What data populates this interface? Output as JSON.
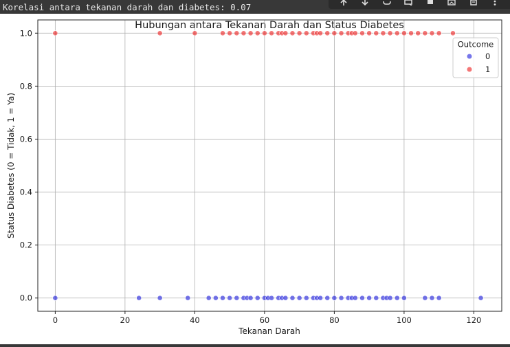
{
  "console_output": "Korelasi antara tekanan darah dan diabetes: 0.07",
  "toolbar": {
    "icons": [
      "arrow-up-icon",
      "arrow-down-icon",
      "link-icon",
      "comment-icon",
      "settings-icon",
      "mirror-icon",
      "delete-icon",
      "more-icon"
    ]
  },
  "chart_data": {
    "type": "scatter",
    "title": "Hubungan antara Tekanan Darah dan Status Diabetes",
    "xlabel": "Tekanan Darah",
    "ylabel": "Status Diabetes (0 = Tidak, 1 = Ya)",
    "xlim": [
      -5,
      128
    ],
    "ylim": [
      -0.05,
      1.05
    ],
    "xticks": [
      0,
      20,
      40,
      60,
      80,
      100,
      120
    ],
    "yticks": [
      0.0,
      0.2,
      0.4,
      0.6,
      0.8,
      1.0
    ],
    "ytick_labels": [
      "0.0",
      "0.2",
      "0.4",
      "0.6",
      "0.8",
      "1.0"
    ],
    "grid": true,
    "legend": {
      "title": "Outcome",
      "placement": "top-right"
    },
    "colors": {
      "0": "#2222dd",
      "1": "#ee2222"
    },
    "series": [
      {
        "name": "0",
        "y": 0,
        "x": [
          0,
          24,
          30,
          38,
          44,
          46,
          48,
          50,
          52,
          54,
          55,
          56,
          58,
          60,
          61,
          62,
          64,
          65,
          66,
          68,
          70,
          72,
          74,
          75,
          76,
          78,
          80,
          82,
          84,
          85,
          86,
          88,
          90,
          92,
          94,
          95,
          96,
          98,
          100,
          106,
          108,
          110,
          122
        ]
      },
      {
        "name": "1",
        "y": 1,
        "x": [
          0,
          30,
          40,
          48,
          50,
          52,
          54,
          56,
          58,
          60,
          62,
          64,
          65,
          66,
          68,
          70,
          72,
          74,
          75,
          76,
          78,
          80,
          82,
          84,
          85,
          86,
          88,
          90,
          92,
          94,
          96,
          98,
          100,
          102,
          104,
          106,
          108,
          110,
          114
        ]
      }
    ]
  }
}
